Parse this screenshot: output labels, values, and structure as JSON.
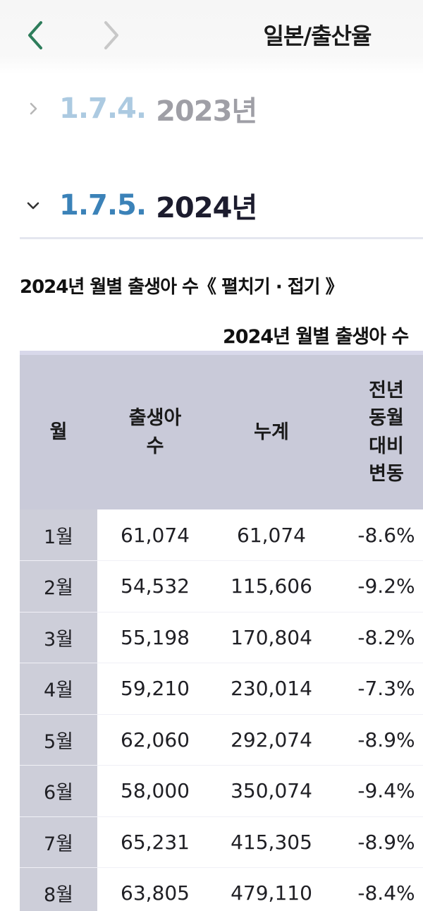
{
  "nav": {
    "title": "일본/출산율"
  },
  "sections": [
    {
      "number": "1.7.4.",
      "label": "2023년",
      "expanded": false
    },
    {
      "number": "1.7.5.",
      "label": "2024년",
      "expanded": true
    }
  ],
  "fold": {
    "title": "2024년 월별 출생아 수《 펼치기 · 접기 》"
  },
  "table": {
    "caption": "2024년 월별 출생아 수",
    "headers": [
      "월",
      "출생아\n수",
      "누계",
      "전년\n동월\n대비\n변동"
    ],
    "rows": [
      [
        "1월",
        "61,074",
        "61,074",
        "-8.6%"
      ],
      [
        "2월",
        "54,532",
        "115,606",
        "-9.2%"
      ],
      [
        "3월",
        "55,198",
        "170,804",
        "-8.2%"
      ],
      [
        "4월",
        "59,210",
        "230,014",
        "-7.3%"
      ],
      [
        "5월",
        "62,060",
        "292,074",
        "-8.9%"
      ],
      [
        "6월",
        "58,000",
        "350,074",
        "-9.4%"
      ],
      [
        "7월",
        "65,231",
        "415,305",
        "-8.9%"
      ],
      [
        "8월",
        "63,805",
        "479,110",
        "-8.4%"
      ]
    ]
  },
  "icons": {
    "back": "chevron-left-icon",
    "forward": "chevron-right-icon",
    "collapsed": "chevron-right-icon",
    "expanded": "chevron-down-icon"
  },
  "colors": {
    "back_arrow": "#2e7d5b",
    "forward_arrow": "#c8c8c8",
    "heading_number": "#3b82b8",
    "header_bg": "#c9cad9"
  }
}
